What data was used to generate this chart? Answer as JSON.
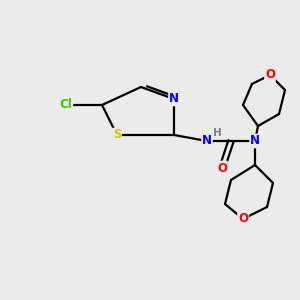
{
  "background_color": "#ebebeb",
  "bond_color": "#000000",
  "atom_colors": {
    "N": "#0000FF",
    "O": "#FF0000",
    "S": "#CCCC00",
    "Cl": "#33CC00",
    "H": "#708090",
    "C": "#000000"
  },
  "figsize": [
    3.0,
    3.0
  ],
  "dpi": 100
}
